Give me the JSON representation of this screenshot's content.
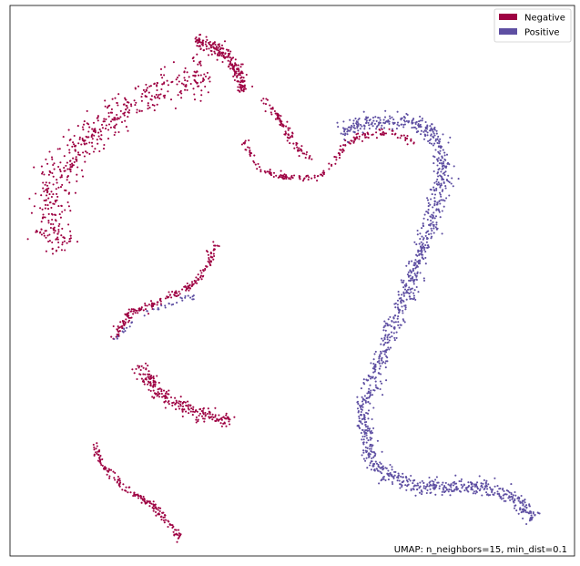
{
  "chart_data": {
    "type": "scatter",
    "title": "",
    "xlabel": "",
    "ylabel": "",
    "axes_ticks": false,
    "grid": false,
    "legend_position": "top-right",
    "annotation": "UMAP: n_neighbors=15, min_dist=0.1",
    "xlim": [
      0,
      10
    ],
    "ylim": [
      0,
      10
    ],
    "series": [
      {
        "name": "Negative",
        "color": "#9e0142",
        "strands": [
          {
            "path": [
              [
                3.2,
                9.6
              ],
              [
                3.7,
                9.35
              ],
              [
                4.0,
                9.0
              ],
              [
                4.1,
                8.6
              ]
            ],
            "spread": 0.06,
            "count": 220
          },
          {
            "path": [
              [
                3.4,
                8.9
              ],
              [
                2.4,
                8.6
              ],
              [
                1.3,
                7.8
              ],
              [
                0.6,
                6.8
              ],
              [
                0.5,
                6.1
              ],
              [
                0.8,
                5.6
              ]
            ],
            "spread": 0.17,
            "count": 520
          },
          {
            "path": [
              [
                4.5,
                8.45
              ],
              [
                4.8,
                8.0
              ],
              [
                5.1,
                7.5
              ],
              [
                5.4,
                7.3
              ]
            ],
            "spread": 0.04,
            "count": 90
          },
          {
            "path": [
              [
                4.1,
                7.65
              ],
              [
                4.4,
                7.1
              ],
              [
                4.9,
                6.95
              ],
              [
                5.5,
                6.95
              ],
              [
                5.8,
                7.3
              ],
              [
                6.0,
                7.6
              ]
            ],
            "spread": 0.03,
            "count": 120
          },
          {
            "path": [
              [
                6.0,
                7.6
              ],
              [
                6.4,
                7.8
              ],
              [
                6.9,
                7.8
              ],
              [
                7.3,
                7.6
              ]
            ],
            "spread": 0.04,
            "count": 70
          },
          {
            "path": [
              [
                3.6,
                5.7
              ],
              [
                3.3,
                5.0
              ],
              [
                2.6,
                4.6
              ],
              [
                2.0,
                4.4
              ],
              [
                1.7,
                3.9
              ]
            ],
            "spread": 0.04,
            "count": 200
          },
          {
            "path": [
              [
                2.2,
                3.4
              ],
              [
                2.6,
                2.8
              ],
              [
                3.2,
                2.5
              ],
              [
                3.9,
                2.35
              ]
            ],
            "spread": 0.07,
            "count": 230
          },
          {
            "path": [
              [
                1.35,
                1.9
              ],
              [
                1.5,
                1.5
              ],
              [
                1.9,
                1.1
              ],
              [
                2.5,
                0.7
              ],
              [
                2.95,
                0.1
              ]
            ],
            "spread": 0.035,
            "count": 170
          }
        ]
      },
      {
        "name": "Positive",
        "color": "#5e4fa2",
        "strands": [
          {
            "path": [
              [
                5.9,
                7.8
              ],
              [
                6.3,
                8.0
              ],
              [
                6.8,
                8.05
              ],
              [
                7.3,
                8.0
              ],
              [
                7.7,
                7.7
              ],
              [
                7.8,
                7.0
              ],
              [
                7.6,
                6.2
              ],
              [
                7.3,
                5.3
              ],
              [
                6.8,
                4.0
              ],
              [
                6.3,
                2.5
              ],
              [
                6.5,
                1.5
              ],
              [
                7.2,
                1.1
              ],
              [
                7.9,
                1.1
              ],
              [
                8.5,
                1.1
              ],
              [
                9.1,
                0.9
              ],
              [
                9.45,
                0.5
              ]
            ],
            "spread": 0.08,
            "count": 1300
          },
          {
            "path": [
              [
                1.7,
                3.9
              ],
              [
                2.3,
                4.4
              ],
              [
                3.2,
                4.7
              ]
            ],
            "spread": 0.03,
            "count": 40
          }
        ]
      }
    ]
  }
}
